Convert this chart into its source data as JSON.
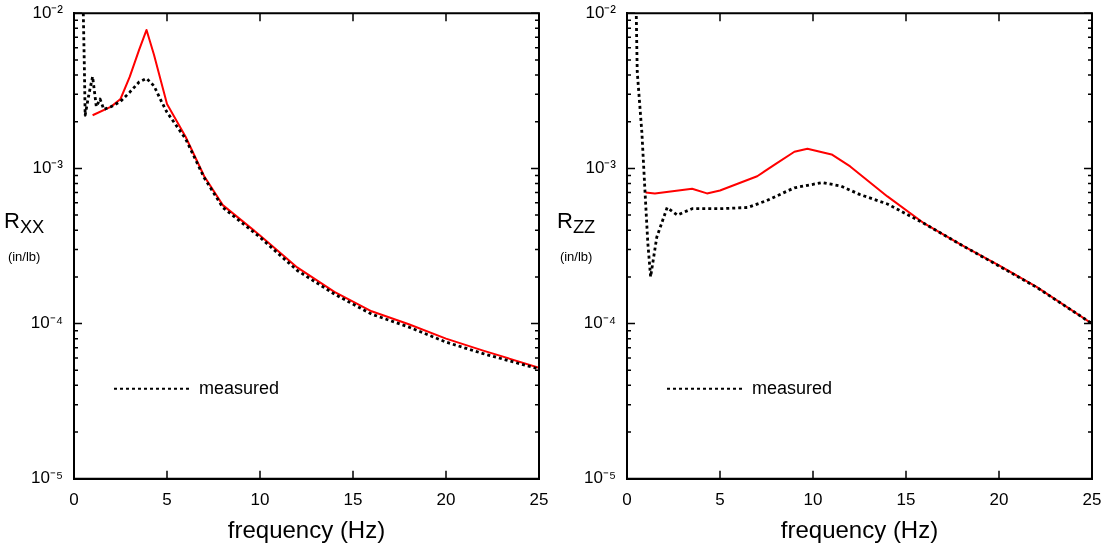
{
  "chart_data": [
    {
      "type": "line",
      "xlabel": "frequency (Hz)",
      "ylabel": "R$_{XX}$\n(in/lb)",
      "log": "y",
      "grid": false,
      "legend": "bottom left",
      "marker": "none",
      "xlim": [
        0,
        25
      ],
      "xticks": [
        0,
        5,
        10,
        15,
        20,
        25
      ],
      "ylim": [
        1e-05,
        0.01
      ],
      "yticks": [
        {
          "value": 1e-05,
          "label": "10⁻⁵"
        },
        {
          "value": 2e-05,
          "label": null
        },
        {
          "value": 3e-05,
          "label": null
        },
        {
          "value": 4e-05,
          "label": null
        },
        {
          "value": 5e-05,
          "label": null
        },
        {
          "value": 6e-05,
          "label": null
        },
        {
          "value": 7e-05,
          "label": null
        },
        {
          "value": 8e-05,
          "label": null
        },
        {
          "value": 9e-05,
          "label": null
        },
        {
          "value": 0.0001,
          "label": "10⁻⁴"
        },
        {
          "value": 0.0002,
          "label": null
        },
        {
          "value": 0.0003,
          "label": null
        },
        {
          "value": 0.0004,
          "label": null
        },
        {
          "value": 0.0005,
          "label": null
        },
        {
          "value": 0.0006,
          "label": null
        },
        {
          "value": 0.0007,
          "label": null
        },
        {
          "value": 0.0008,
          "label": null
        },
        {
          "value": 0.0009,
          "label": null
        },
        {
          "value": 0.001,
          "label": "10⁻³"
        },
        {
          "value": 0.002,
          "label": null
        },
        {
          "value": 0.003,
          "label": null
        },
        {
          "value": 0.004,
          "label": null
        },
        {
          "value": 0.005,
          "label": null
        },
        {
          "value": 0.006,
          "label": null
        },
        {
          "value": 0.007,
          "label": null
        },
        {
          "value": 0.008,
          "label": null
        },
        {
          "value": 0.009,
          "label": null
        },
        {
          "value": 0.01,
          "label": "10⁻²"
        }
      ],
      "series": [
        {
          "color": "#ff0000",
          "line_style": "solid",
          "x": [
            1,
            2,
            2.5,
            3,
            3.5,
            3.9,
            4.3,
            5,
            6,
            7,
            8,
            10,
            12,
            14,
            16,
            18,
            20,
            22,
            25
          ],
          "values": [
            0.0022,
            0.0025,
            0.0028,
            0.0039,
            0.0058,
            0.0078,
            0.0054,
            0.0026,
            0.0016,
            0.00089,
            0.00058,
            0.00037,
            0.00023,
            0.00016,
            0.00012,
            9.9e-05,
            8e-05,
            6.7e-05,
            5.2e-05
          ]
        },
        {
          "name": "measured",
          "color": "#000000",
          "line_style": "dotted",
          "x": [
            0.5,
            0.55,
            0.6,
            0.8,
            1,
            1.2,
            1.4,
            1.6,
            2,
            2.5,
            3,
            3.5,
            3.9,
            4.3,
            4.7,
            5,
            6,
            7,
            8,
            10,
            12,
            14,
            16,
            18,
            20,
            22,
            25
          ],
          "values": [
            0.01,
            0.005,
            0.0022,
            0.003,
            0.0039,
            0.0025,
            0.0028,
            0.0024,
            0.0025,
            0.0027,
            0.0031,
            0.0036,
            0.0038,
            0.0034,
            0.0027,
            0.0023,
            0.00155,
            0.00087,
            0.00056,
            0.00036,
            0.00022,
            0.000155,
            0.000115,
            9.5e-05,
            7.6e-05,
            6.4e-05,
            5.1e-05
          ]
        }
      ]
    },
    {
      "type": "line",
      "xlabel": "frequency (Hz)",
      "ylabel": "R$_{ZZ}$\n(in/lb)",
      "log": "y",
      "grid": false,
      "legend": "bottom left",
      "marker": "none",
      "xlim": [
        0,
        25
      ],
      "xticks": [
        0,
        5,
        10,
        15,
        20,
        25
      ],
      "ylim": [
        1e-05,
        0.01
      ],
      "yticks": [
        {
          "value": 1e-05,
          "label": "10⁻⁵"
        },
        {
          "value": 2e-05,
          "label": null
        },
        {
          "value": 3e-05,
          "label": null
        },
        {
          "value": 4e-05,
          "label": null
        },
        {
          "value": 5e-05,
          "label": null
        },
        {
          "value": 6e-05,
          "label": null
        },
        {
          "value": 7e-05,
          "label": null
        },
        {
          "value": 8e-05,
          "label": null
        },
        {
          "value": 9e-05,
          "label": null
        },
        {
          "value": 0.0001,
          "label": "10⁻⁴"
        },
        {
          "value": 0.0002,
          "label": null
        },
        {
          "value": 0.0003,
          "label": null
        },
        {
          "value": 0.0004,
          "label": null
        },
        {
          "value": 0.0005,
          "label": null
        },
        {
          "value": 0.0006,
          "label": null
        },
        {
          "value": 0.0007,
          "label": null
        },
        {
          "value": 0.0008,
          "label": null
        },
        {
          "value": 0.0009,
          "label": null
        },
        {
          "value": 0.001,
          "label": "10⁻³"
        },
        {
          "value": 0.002,
          "label": null
        },
        {
          "value": 0.003,
          "label": null
        },
        {
          "value": 0.004,
          "label": null
        },
        {
          "value": 0.005,
          "label": null
        },
        {
          "value": 0.006,
          "label": null
        },
        {
          "value": 0.007,
          "label": null
        },
        {
          "value": 0.008,
          "label": null
        },
        {
          "value": 0.009,
          "label": null
        },
        {
          "value": 0.01,
          "label": "10⁻²"
        }
      ],
      "series": [
        {
          "color": "#ff0000",
          "line_style": "solid",
          "x": [
            1,
            1.5,
            3.5,
            4.3,
            5,
            7,
            8,
            9,
            9.7,
            11,
            12,
            14,
            16,
            18,
            20,
            22,
            25
          ],
          "values": [
            0.0007,
            0.00069,
            0.00074,
            0.00069,
            0.00072,
            0.00089,
            0.00107,
            0.00128,
            0.00134,
            0.00123,
            0.00103,
            0.00066,
            0.00044,
            0.00032,
            0.000237,
            0.000173,
            0.0001
          ]
        },
        {
          "name": "measured",
          "color": "#000000",
          "line_style": "dotted",
          "x": [
            0.5,
            0.55,
            0.8,
            0.97,
            1.12,
            1.27,
            1.6,
            2.16,
            2.7,
            3.5,
            5,
            6.5,
            7.5,
            9,
            10.5,
            11.5,
            12.5,
            14,
            16,
            18,
            20,
            22,
            25
          ],
          "values": [
            0.0096,
            0.0042,
            0.0017,
            0.0007,
            0.00033,
            0.0002,
            0.00036,
            0.00056,
            0.0005,
            0.00055,
            0.00055,
            0.00056,
            0.00062,
            0.00075,
            0.00081,
            0.00077,
            0.00068,
            0.00059,
            0.00044,
            0.00032,
            0.000235,
            0.000172,
            0.0001
          ]
        }
      ]
    }
  ]
}
